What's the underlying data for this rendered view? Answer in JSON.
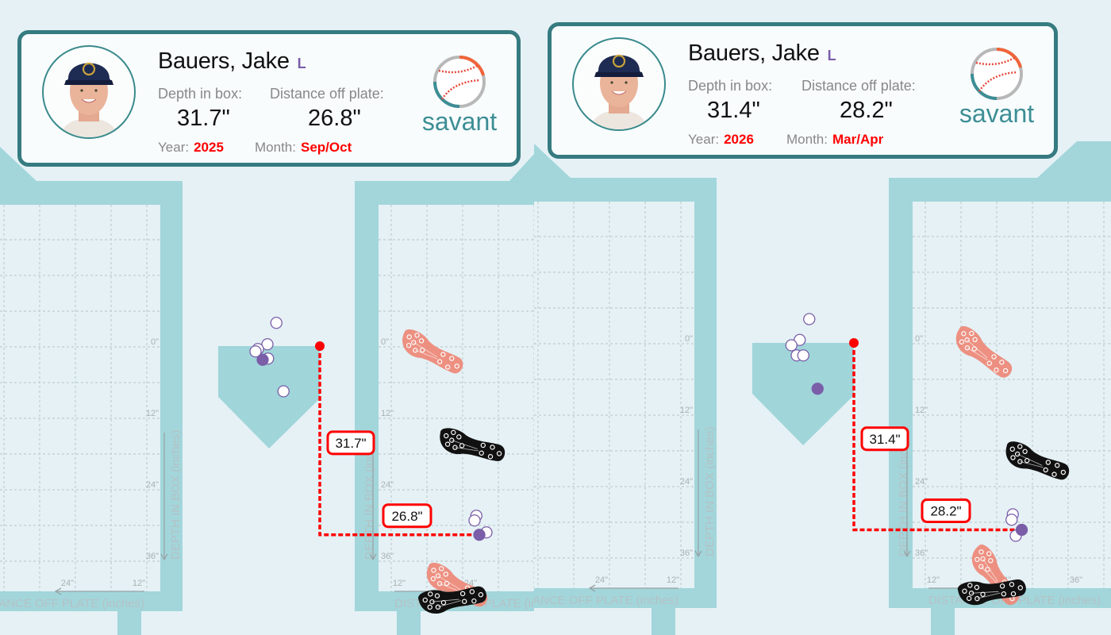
{
  "colors": {
    "background": "#e5f1f5",
    "frame": "#a2d6db",
    "plate": "#a0d5da",
    "card_border": "#367b80",
    "highlight": "#ff0000",
    "pitch_dot": "#7a5ea8",
    "front_foot": "#ee8878",
    "back_foot": "#111111",
    "savant": "#3d8e95"
  },
  "axes": {
    "depth_title": "DEPTH IN BOX (inches)",
    "distance_title": "DISTANCE OFF PLATE (inches)",
    "depth_ticks": [
      "0\"",
      "12\"",
      "24\"",
      "36\""
    ],
    "distance_ticks_left": [
      "24\"",
      "12\""
    ],
    "distance_ticks_right": [
      "12\"",
      "24\"",
      "36\""
    ]
  },
  "panels": [
    {
      "player": {
        "name": "Bauers, Jake",
        "bats": "L"
      },
      "labels": {
        "depth": "Depth in box:",
        "distance": "Distance off plate:",
        "year": "Year:",
        "month": "Month:"
      },
      "depth": "31.7\"",
      "distance": "26.8\"",
      "year": "2025",
      "month": "Sep/Oct",
      "logo": "savant",
      "stance": {
        "depth_in": 31.7,
        "distance_in": 26.8,
        "depth_label": "31.7\"",
        "distance_label": "26.8\""
      },
      "contact_points": [
        {
          "x": -7.3,
          "y": -3.9,
          "filled": false
        },
        {
          "x": -8.8,
          "y": -0.3,
          "filled": false
        },
        {
          "x": -10.4,
          "y": 0.5,
          "filled": false
        },
        {
          "x": -10.8,
          "y": 0.9,
          "filled": false
        },
        {
          "x": -8.7,
          "y": 2.1,
          "filled": false
        },
        {
          "x": -6.1,
          "y": 7.6,
          "filled": false
        },
        {
          "x": -9.6,
          "y": 2.3,
          "filled": true
        }
      ],
      "stance_points": [
        {
          "x": 26.3,
          "y": 28.5,
          "filled": false
        },
        {
          "x": 26.0,
          "y": 29.3,
          "filled": false
        },
        {
          "x": 28.0,
          "y": 31.3,
          "filled": false
        },
        {
          "x": 26.8,
          "y": 31.7,
          "filled": true
        }
      ],
      "cleats": [
        {
          "foot": "front",
          "x": 18.8,
          "y": 1.1,
          "angle": 25
        },
        {
          "foot": "back",
          "x": 25.5,
          "y": 16.8,
          "angle": 12
        },
        {
          "foot": "front",
          "x": 22.9,
          "y": 40.3,
          "angle": 25
        },
        {
          "foot": "back",
          "x": 22.3,
          "y": 42.5,
          "angle": -12
        }
      ]
    },
    {
      "player": {
        "name": "Bauers, Jake",
        "bats": "L"
      },
      "labels": {
        "depth": "Depth in box:",
        "distance": "Distance off plate:",
        "year": "Year:",
        "month": "Month:"
      },
      "depth": "31.4\"",
      "distance": "28.2\"",
      "year": "2026",
      "month": "Mar/Apr",
      "logo": "savant",
      "stance": {
        "depth_in": 31.4,
        "distance_in": 28.2,
        "depth_label": "31.4\"",
        "distance_label": "28.2\""
      },
      "contact_points": [
        {
          "x": -7.5,
          "y": -4.0,
          "filled": false
        },
        {
          "x": -9.1,
          "y": -0.5,
          "filled": false
        },
        {
          "x": -10.5,
          "y": 0.4,
          "filled": false
        },
        {
          "x": -9.6,
          "y": 2.1,
          "filled": false
        },
        {
          "x": -8.5,
          "y": 2.1,
          "filled": false
        },
        {
          "x": -6.1,
          "y": 7.7,
          "filled": true
        }
      ],
      "stance_points": [
        {
          "x": 26.7,
          "y": 28.8,
          "filled": false
        },
        {
          "x": 26.5,
          "y": 29.7,
          "filled": false
        },
        {
          "x": 27.2,
          "y": 32.4,
          "filled": false
        },
        {
          "x": 28.2,
          "y": 31.4,
          "filled": true
        }
      ],
      "cleats": [
        {
          "foot": "front",
          "x": 21.7,
          "y": 1.7,
          "angle": 35
        },
        {
          "foot": "back",
          "x": 30.7,
          "y": 20.0,
          "angle": 18
        },
        {
          "foot": "front",
          "x": 23.7,
          "y": 39.1,
          "angle": 50
        },
        {
          "foot": "back",
          "x": 23.2,
          "y": 41.7,
          "angle": -10
        }
      ]
    }
  ]
}
